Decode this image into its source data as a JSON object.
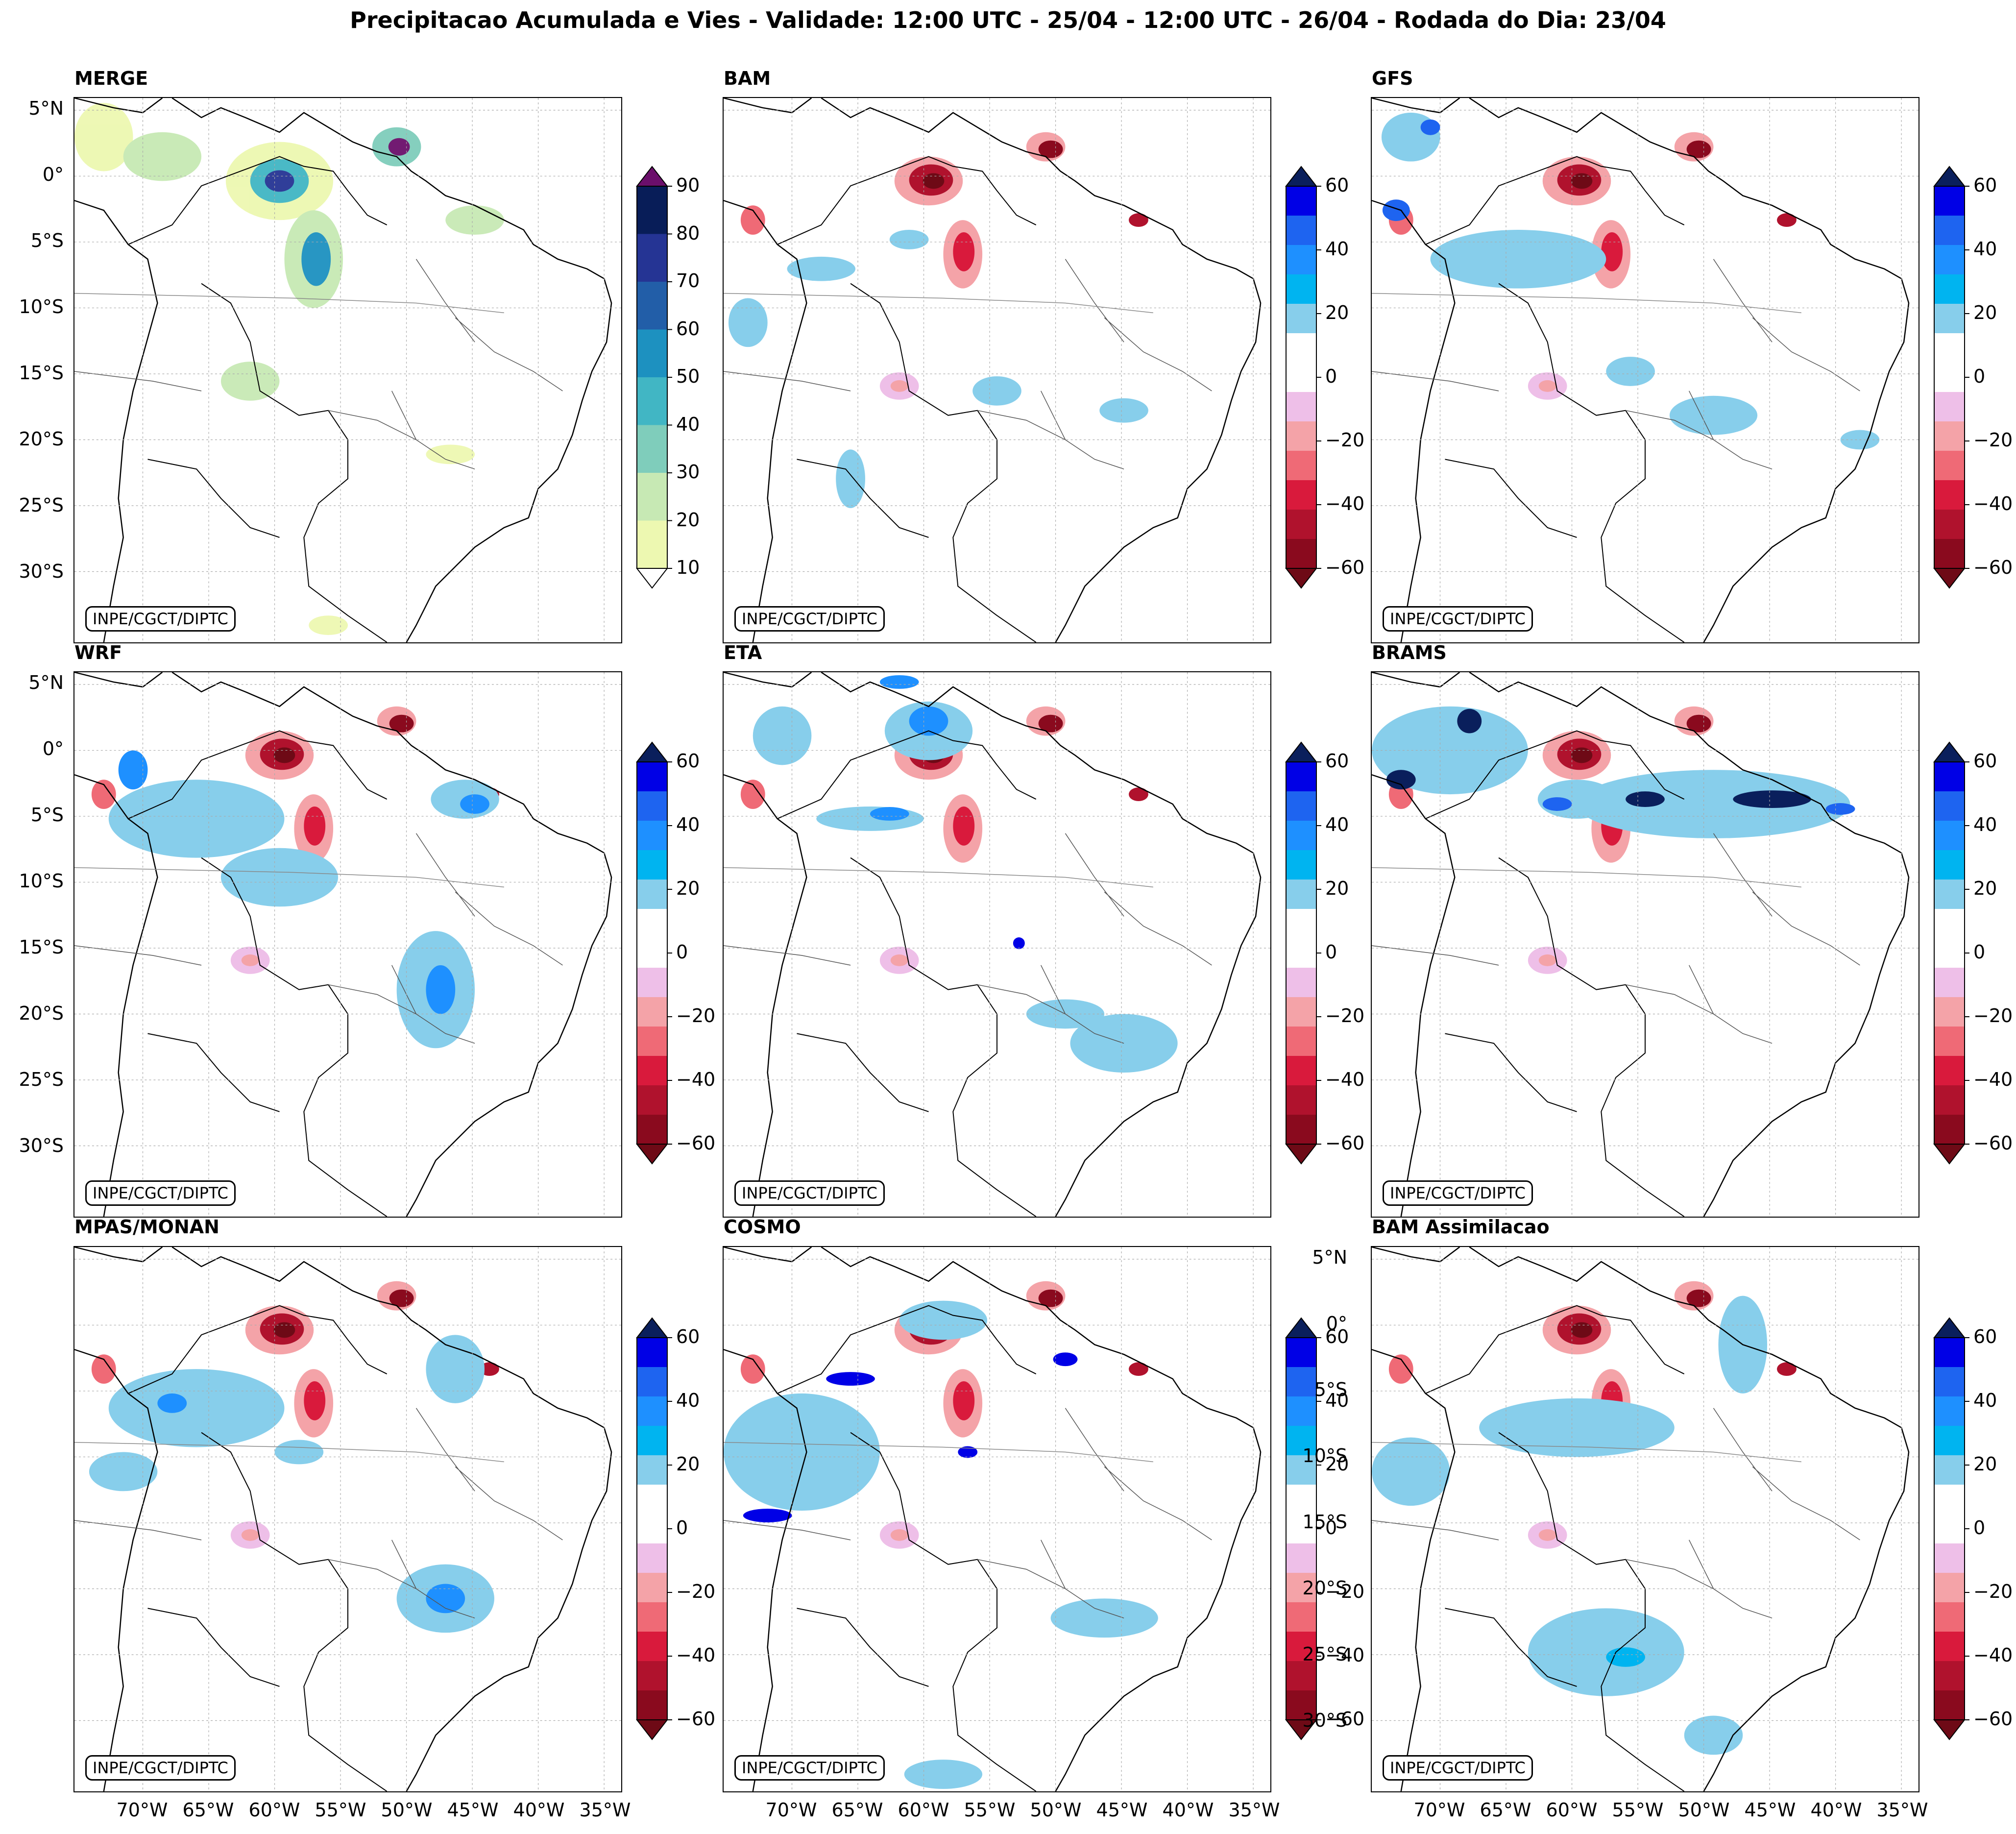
{
  "figure": {
    "title": "Precipitacao Acumulada e Vies - Validade: 12:00 UTC - 25/04 - 12:00 UTC - 26/04 - Rodada do Dia: 23/04",
    "credit": "INPE/CGCT/DIPTC"
  },
  "panels": [
    {
      "title": "MERGE",
      "type": "precip"
    },
    {
      "title": "BAM",
      "type": "bias"
    },
    {
      "title": "GFS",
      "type": "bias"
    },
    {
      "title": "WRF",
      "type": "bias"
    },
    {
      "title": "ETA",
      "type": "bias"
    },
    {
      "title": "BRAMS",
      "type": "bias"
    },
    {
      "title": "MPAS/MONAN",
      "type": "bias"
    },
    {
      "title": "COSMO",
      "type": "bias"
    },
    {
      "title": "BAM Assimilacao",
      "type": "bias"
    }
  ],
  "axes": {
    "lat_ticks": [
      "5°N",
      "0°",
      "5°S",
      "10°S",
      "15°S",
      "20°S",
      "25°S",
      "30°S"
    ],
    "lon_ticks": [
      "70°W",
      "65°W",
      "60°W",
      "55°W",
      "50°W",
      "45°W",
      "40°W",
      "35°W"
    ]
  },
  "colorbars": {
    "precip": {
      "ticks": [
        "90",
        "80",
        "70",
        "60",
        "50",
        "40",
        "30",
        "20",
        "10"
      ],
      "colors": [
        "#081d58",
        "#253494",
        "#225ea8",
        "#1d91c0",
        "#41b6c4",
        "#7fcdbb",
        "#c7e9b4",
        "#edf8b1"
      ],
      "over_color": "#6b0f6b",
      "under_color": "#ffffff"
    },
    "bias": {
      "ticks": [
        "60",
        "40",
        "20",
        "0",
        "−20",
        "−40",
        "−60"
      ],
      "colors": [
        "#0000e6",
        "#1e64f0",
        "#1e90ff",
        "#00b4f0",
        "#87ceeb",
        "#ffffff",
        "#ffffff",
        "#eebfe8",
        "#f4a3a8",
        "#ef6a76",
        "#d91a3c",
        "#b0122d",
        "#8a0a1e"
      ],
      "over_color": "#0a1f5c",
      "under_color": "#6e0a16"
    }
  }
}
